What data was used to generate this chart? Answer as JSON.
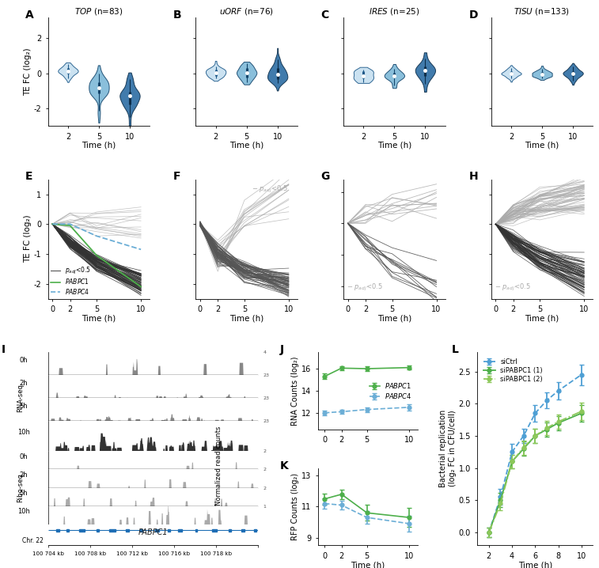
{
  "violin_titles": [
    "TOP (n=83)",
    "uORF (n=76)",
    "IRES (n=25)",
    "TISU (n=133)"
  ],
  "violin_xlabel": "Time (h)",
  "violin_ylabel": "TE FC (log₂)",
  "line_ylabel": "TE FC (log₂)",
  "line_xlabel": "Time (h)",
  "pabpc1_color": "#4daf4a",
  "pabpc4_color": "#6baed6",
  "J_ylabel": "RNA Counts (log₂)",
  "J_xlabel": "Time (h)",
  "pabpc1_rna": [
    15.3,
    16.05,
    16.0,
    16.1
  ],
  "pabpc4_rna": [
    12.0,
    12.1,
    12.3,
    12.5
  ],
  "pabpc1_rna_err": [
    0.25,
    0.2,
    0.2,
    0.2
  ],
  "pabpc4_rna_err": [
    0.2,
    0.2,
    0.22,
    0.28
  ],
  "K_ylabel": "RFP Counts (log₂)",
  "K_xlabel": "Time (h)",
  "pabpc1_rfp": [
    11.5,
    11.8,
    10.6,
    10.3
  ],
  "pabpc4_rfp": [
    11.2,
    11.1,
    10.3,
    9.9
  ],
  "pabpc1_rfp_err": [
    0.35,
    0.3,
    0.5,
    0.6
  ],
  "pabpc4_rfp_err": [
    0.35,
    0.3,
    0.4,
    0.5
  ],
  "L_ylabel": "Bacterial replication\n(log₂ FC in CFU/cell)",
  "L_xlabel": "Time (h)",
  "sictrl_color": "#4e9fd4",
  "sipabpc1_1_color": "#4daf4a",
  "sipabpc1_2_color": "#8dc85a",
  "L_t": [
    2,
    3,
    4,
    5,
    6,
    7,
    8,
    10
  ],
  "sictrl": [
    0.0,
    0.55,
    1.25,
    1.5,
    1.85,
    2.05,
    2.2,
    2.45
  ],
  "sipabpc1_1": [
    0.0,
    0.5,
    1.1,
    1.3,
    1.5,
    1.6,
    1.7,
    1.85
  ],
  "sipabpc1_2": [
    0.0,
    0.45,
    1.1,
    1.32,
    1.5,
    1.62,
    1.72,
    1.88
  ],
  "err_ctrl": [
    0.07,
    0.12,
    0.13,
    0.11,
    0.13,
    0.12,
    0.13,
    0.16
  ],
  "err_1": [
    0.07,
    0.11,
    0.11,
    0.11,
    0.11,
    0.11,
    0.11,
    0.13
  ],
  "err_2": [
    0.07,
    0.11,
    0.11,
    0.11,
    0.11,
    0.11,
    0.11,
    0.13
  ],
  "violin_light": [
    "#c6dff0",
    "#7db8d8",
    "#2c6da3"
  ],
  "violin_dark": [
    "#1e5a8a",
    "#14456b",
    "#0d2e4a"
  ],
  "background_color": "#ffffff"
}
